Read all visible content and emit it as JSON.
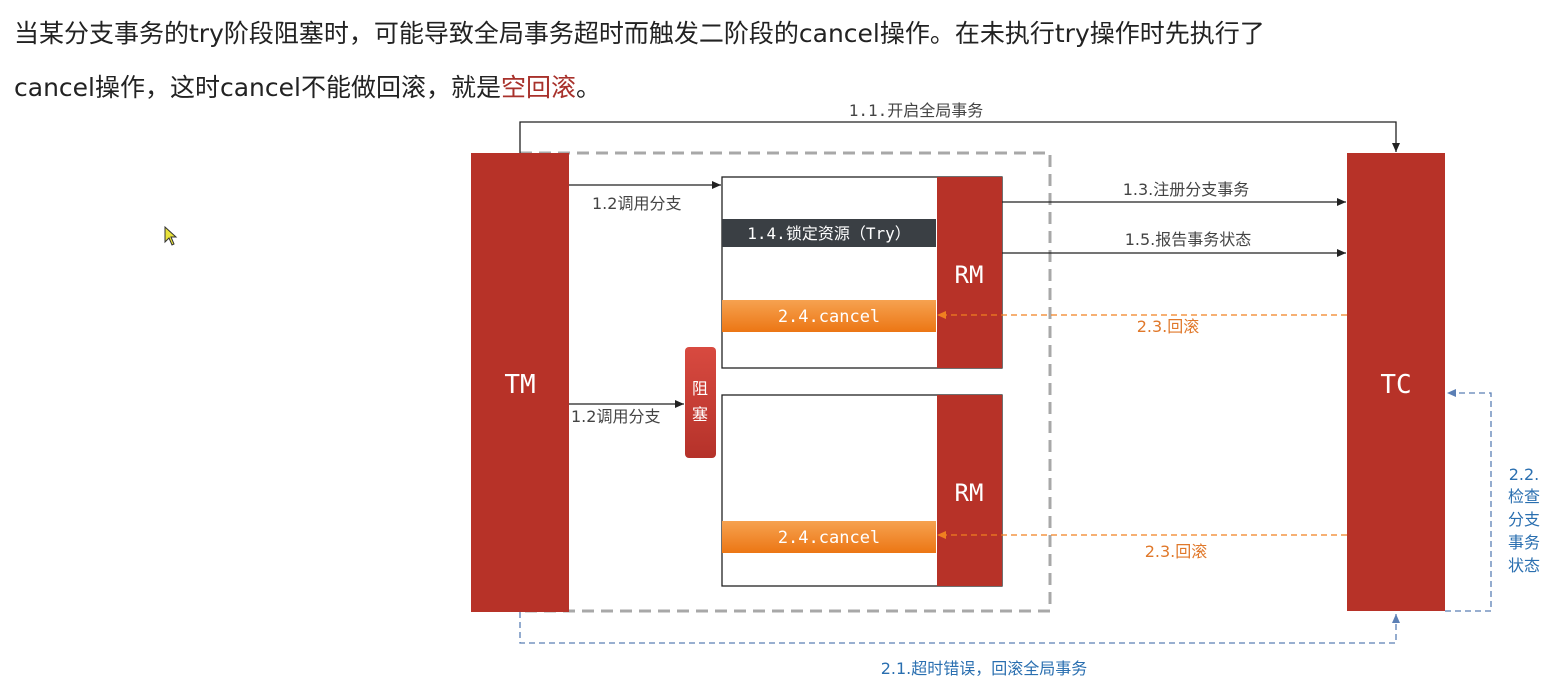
{
  "paragraph": {
    "line1": "当某分支事务的try阶段阻塞时，可能导致全局事务超时而触发二阶段的cancel操作。在未执行try操作时先执行了",
    "line2_prefix": "cancel操作，这时cancel不能做回滚，就是",
    "line2_highlight": "空回滚",
    "line2_suffix": "。"
  },
  "diagram": {
    "tm_label": "TM",
    "tc_label": "TC",
    "rm1_label": "RM",
    "rm2_label": "RM",
    "blocked_label_1": "阻",
    "blocked_label_2": "塞",
    "step_1_1": "1.1.开启全局事务",
    "step_1_2_a": "1.2调用分支",
    "step_1_2_b": "1.2调用分支",
    "step_1_3": "1.3.注册分支事务",
    "step_1_4": "1.4.锁定资源（Try）",
    "step_1_5": "1.5.报告事务状态",
    "step_2_4_a": "2.4.cancel",
    "step_2_4_b": "2.4.cancel",
    "step_2_3_a": "2.3.回滚",
    "step_2_3_b": "2.3.回滚",
    "step_2_1": "2.1.超时错误，回滚全局事务",
    "step_2_2_lines": [
      "2.2.",
      "检查",
      "分支",
      "事务",
      "状态"
    ],
    "colors": {
      "red": "#b73228",
      "orange": "#f08020",
      "orange_text": "#e0782a",
      "blue": "#5b7fb5",
      "blue_text": "#2a6fb0",
      "dark_box": "#3a3f44",
      "gray_dash": "#a0a0a0"
    }
  }
}
